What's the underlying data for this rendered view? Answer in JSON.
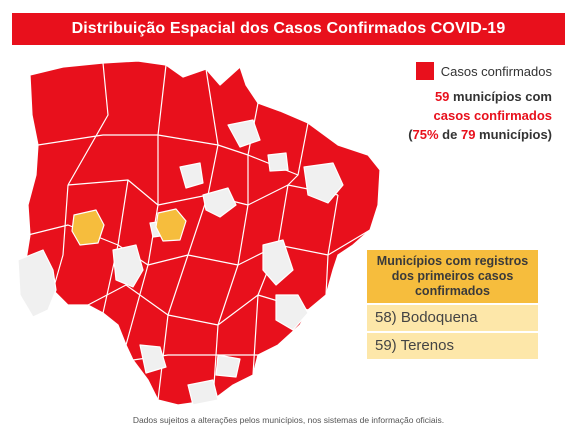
{
  "title": "Distribuição Espacial dos Casos Confirmados COVID-19",
  "legend": {
    "swatch_label": "Casos confirmados",
    "line1_count": "59",
    "line1_rest": " municípios com",
    "line2": "casos confirmados",
    "line3_open": "(",
    "line3_pct": "75%",
    "line3_mid": " de ",
    "line3_total": "79",
    "line3_rest": " municípios)",
    "confirmed_color": "#e8101c"
  },
  "first_cases_box": {
    "header": "Municípios com registros dos primeiros casos confirmados",
    "items": [
      "58) Bodoquena",
      "59) Terenos"
    ],
    "highlight_color": "#f6bd3d"
  },
  "map_colors": {
    "confirmed": "#e8101c",
    "no_cases": "#f0f0f0",
    "first_cases": "#f6bd3d",
    "border": "#ffffff"
  },
  "footnote": "Dados sujeitos a alterações pelos municípios, nos sistemas de informação oficiais."
}
